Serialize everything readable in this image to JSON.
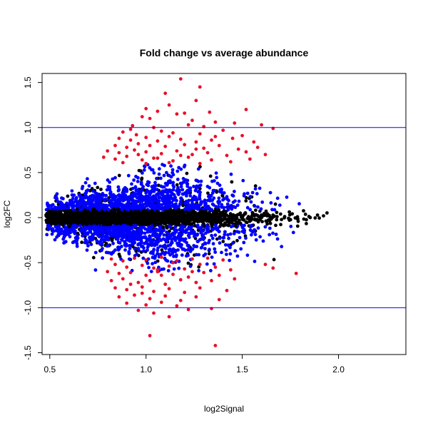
{
  "chart_data": {
    "type": "scatter",
    "title": "Fold change vs average abundance",
    "xlabel": "log2Signal",
    "ylabel": "log2FC",
    "xlim": [
      0.46,
      2.35
    ],
    "ylim": [
      -1.52,
      1.6
    ],
    "x_ticks": [
      0.5,
      1.0,
      1.5,
      2.0
    ],
    "x_tick_labels": [
      "0.5",
      "1.0",
      "1.5",
      "2.0"
    ],
    "y_ticks": [
      -1.5,
      -1.0,
      -0.5,
      0.0,
      0.5,
      1.0,
      1.5
    ],
    "y_tick_labels": [
      "-1.5",
      "-1.0",
      "-0.5",
      "0.0",
      "0.5",
      "1.0",
      "1.5"
    ],
    "reference_lines": [
      {
        "axis": "y",
        "value": 1.0,
        "color": "#0000ff"
      },
      {
        "axis": "y",
        "value": -1.0,
        "color": "#0000ff"
      }
    ],
    "grid": false,
    "series_colors": {
      "black": "#000000",
      "blue": "#0000ff",
      "red": "#e8102a"
    },
    "series": [
      {
        "color_key": "red",
        "points": [
          [
            1.18,
            1.54
          ],
          [
            1.28,
            1.45
          ],
          [
            1.1,
            1.38
          ],
          [
            1.12,
            1.25
          ],
          [
            1.26,
            1.3
          ],
          [
            1.0,
            1.21
          ],
          [
            1.06,
            1.18
          ],
          [
            1.2,
            1.16
          ],
          [
            1.33,
            1.17
          ],
          [
            1.52,
            1.2
          ],
          [
            0.98,
            1.12
          ],
          [
            1.02,
            1.1
          ],
          [
            1.16,
            1.15
          ],
          [
            1.24,
            1.08
          ],
          [
            1.36,
            1.06
          ],
          [
            1.46,
            1.05
          ],
          [
            1.6,
            1.03
          ],
          [
            1.66,
            0.99
          ],
          [
            0.93,
            1.02
          ],
          [
            1.04,
            1.0
          ],
          [
            1.22,
            1.03
          ],
          [
            1.3,
            1.01
          ],
          [
            0.88,
            0.95
          ],
          [
            0.95,
            0.92
          ],
          [
            1.08,
            0.96
          ],
          [
            1.14,
            0.94
          ],
          [
            1.28,
            0.93
          ],
          [
            1.4,
            0.97
          ],
          [
            1.5,
            0.91
          ],
          [
            0.86,
            0.88
          ],
          [
            0.92,
            0.86
          ],
          [
            1.0,
            0.89
          ],
          [
            1.06,
            0.85
          ],
          [
            1.18,
            0.87
          ],
          [
            1.26,
            0.84
          ],
          [
            1.34,
            0.86
          ],
          [
            1.45,
            0.88
          ],
          [
            1.56,
            0.84
          ],
          [
            0.84,
            0.8
          ],
          [
            0.9,
            0.78
          ],
          [
            0.96,
            0.82
          ],
          [
            1.02,
            0.8
          ],
          [
            1.1,
            0.79
          ],
          [
            1.2,
            0.81
          ],
          [
            1.3,
            0.77
          ],
          [
            1.38,
            0.8
          ],
          [
            1.48,
            0.76
          ],
          [
            1.58,
            0.78
          ],
          [
            0.8,
            0.74
          ],
          [
            0.86,
            0.72
          ],
          [
            0.94,
            0.75
          ],
          [
            1.0,
            0.73
          ],
          [
            1.08,
            0.71
          ],
          [
            1.16,
            0.74
          ],
          [
            1.24,
            0.7
          ],
          [
            1.32,
            0.72
          ],
          [
            1.42,
            0.69
          ],
          [
            1.52,
            0.73
          ],
          [
            1.62,
            0.7
          ],
          [
            0.78,
            0.67
          ],
          [
            0.84,
            0.65
          ],
          [
            0.9,
            0.68
          ],
          [
            0.98,
            0.64
          ],
          [
            1.06,
            0.66
          ],
          [
            1.14,
            0.63
          ],
          [
            1.22,
            0.67
          ],
          [
            1.34,
            0.64
          ],
          [
            1.44,
            0.62
          ],
          [
            1.54,
            0.65
          ],
          [
            0.88,
            0.61
          ],
          [
            1.0,
            0.6
          ],
          [
            1.12,
            0.61
          ],
          [
            1.28,
            0.6
          ],
          [
            0.96,
            0.7
          ],
          [
            1.26,
            0.76
          ],
          [
            1.12,
            0.9
          ],
          [
            0.92,
            0.98
          ],
          [
            1.36,
            0.9
          ],
          [
            1.04,
            0.66
          ],
          [
            1.18,
            0.69
          ],
          [
            0.82,
            -0.46
          ],
          [
            0.88,
            -0.48
          ],
          [
            0.94,
            -0.45
          ],
          [
            1.0,
            -0.47
          ],
          [
            1.08,
            -0.44
          ],
          [
            1.16,
            -0.48
          ],
          [
            1.24,
            -0.46
          ],
          [
            1.32,
            -0.45
          ],
          [
            1.4,
            -0.47
          ],
          [
            1.62,
            -0.52
          ],
          [
            0.84,
            -0.52
          ],
          [
            0.9,
            -0.55
          ],
          [
            0.98,
            -0.53
          ],
          [
            1.04,
            -0.56
          ],
          [
            1.12,
            -0.54
          ],
          [
            1.2,
            -0.57
          ],
          [
            1.28,
            -0.52
          ],
          [
            1.36,
            -0.55
          ],
          [
            1.44,
            -0.58
          ],
          [
            1.66,
            -0.56
          ],
          [
            0.8,
            -0.6
          ],
          [
            0.86,
            -0.62
          ],
          [
            0.92,
            -0.61
          ],
          [
            1.0,
            -0.64
          ],
          [
            1.06,
            -0.6
          ],
          [
            1.14,
            -0.63
          ],
          [
            1.22,
            -0.66
          ],
          [
            1.3,
            -0.61
          ],
          [
            1.38,
            -0.64
          ],
          [
            1.78,
            -0.62
          ],
          [
            0.82,
            -0.7
          ],
          [
            0.88,
            -0.68
          ],
          [
            0.96,
            -0.72
          ],
          [
            1.02,
            -0.7
          ],
          [
            1.1,
            -0.74
          ],
          [
            1.18,
            -0.69
          ],
          [
            1.26,
            -0.72
          ],
          [
            1.34,
            -0.7
          ],
          [
            1.46,
            -0.68
          ],
          [
            0.84,
            -0.78
          ],
          [
            0.9,
            -0.8
          ],
          [
            0.98,
            -0.77
          ],
          [
            1.04,
            -0.82
          ],
          [
            1.12,
            -0.79
          ],
          [
            1.2,
            -0.83
          ],
          [
            1.28,
            -0.78
          ],
          [
            1.42,
            -0.81
          ],
          [
            0.86,
            -0.88
          ],
          [
            0.94,
            -0.86
          ],
          [
            1.02,
            -0.9
          ],
          [
            1.1,
            -0.87
          ],
          [
            1.18,
            -0.92
          ],
          [
            1.26,
            -0.88
          ],
          [
            1.38,
            -0.91
          ],
          [
            0.9,
            -0.95
          ],
          [
            1.0,
            -0.97
          ],
          [
            1.08,
            -0.94
          ],
          [
            1.16,
            -0.98
          ],
          [
            0.96,
            -1.03
          ],
          [
            1.04,
            -1.06
          ],
          [
            1.12,
            -1.1
          ],
          [
            1.22,
            -1.02
          ],
          [
            1.34,
            -1.01
          ],
          [
            1.02,
            -1.31
          ],
          [
            1.36,
            -1.42
          ],
          [
            1.06,
            -0.58
          ],
          [
            0.92,
            -0.74
          ],
          [
            1.14,
            -0.5
          ],
          [
            1.24,
            -0.6
          ],
          [
            0.98,
            -0.84
          ],
          [
            1.08,
            -0.64
          ]
        ]
      }
    ]
  }
}
